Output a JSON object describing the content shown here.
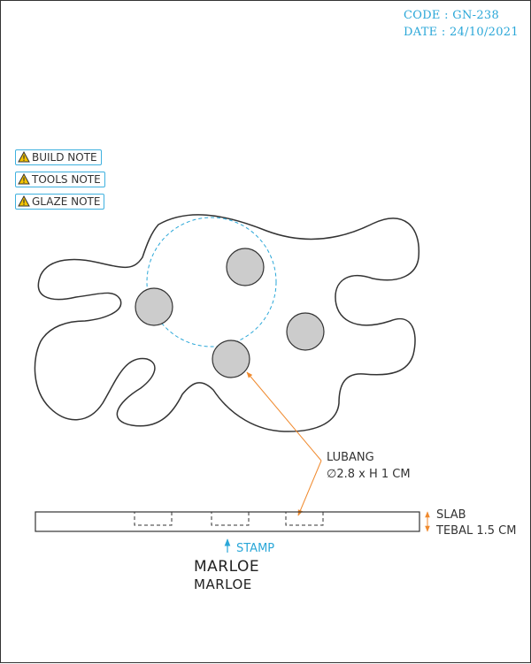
{
  "header": {
    "code": "CODE : GN-238",
    "date": "DATE : 24/10/2021"
  },
  "notes": [
    {
      "label": "BUILD NOTE",
      "icon": "warning-icon"
    },
    {
      "label": "TOOLS NOTE",
      "icon": "warning-icon"
    },
    {
      "label": "GLAZE NOTE",
      "icon": "warning-icon"
    }
  ],
  "callouts": {
    "hole": {
      "line1": "LUBANG",
      "line2": "∅2.8 x H 1 CM"
    },
    "slab": {
      "line1": "SLAB",
      "line2": "TEBAL 1.5 CM"
    },
    "stamp": "STAMP"
  },
  "stamp": {
    "mark": "MARLOE",
    "text": "MARLOE"
  },
  "colors": {
    "accent": "#2aa7d8",
    "leader": "#f08a2e",
    "outline": "#333333",
    "hole_fill": "#cccccc"
  }
}
